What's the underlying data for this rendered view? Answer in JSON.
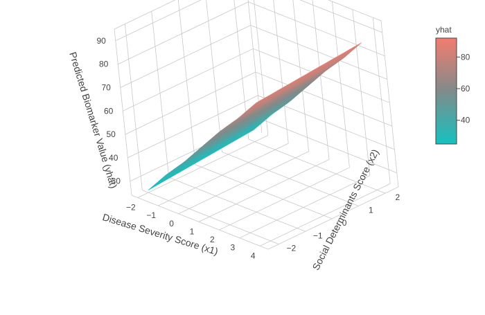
{
  "chart_data": {
    "type": "surface",
    "axes": {
      "x": {
        "title": "Disease Severity Score (x1)",
        "ticks": [
          -2,
          -1,
          0,
          1,
          2,
          3,
          4
        ],
        "range": [
          -2.3,
          4.4
        ]
      },
      "y": {
        "title": "Social Determinants Score (x2)",
        "ticks": [
          -2,
          -1,
          0,
          1,
          2
        ],
        "range": [
          -2.4,
          2.5
        ]
      },
      "z": {
        "title": "Predicted Biomarker Value (yhat)",
        "ticks": [
          30,
          40,
          50,
          60,
          70,
          80,
          90
        ],
        "range": [
          24,
          95
        ]
      }
    },
    "surface": {
      "x1": [
        -2,
        -1,
        0,
        1,
        2,
        3,
        4
      ],
      "x2": [
        -2,
        -1,
        0,
        1,
        2
      ],
      "yhat": [
        [
          25,
          26,
          27,
          28,
          29
        ],
        [
          35,
          36,
          37,
          38,
          39
        ],
        [
          44,
          45,
          46,
          47,
          48
        ],
        [
          54,
          55,
          56,
          57,
          58
        ],
        [
          64,
          65,
          66,
          67,
          68
        ],
        [
          73,
          74,
          75,
          76,
          77
        ],
        [
          83,
          84,
          85,
          86,
          87
        ]
      ]
    },
    "colorbar": {
      "title": "yhat",
      "ticks": [
        40,
        60,
        80
      ],
      "range": [
        25,
        92
      ],
      "color_low": "#16c1c1",
      "color_mid": "#808b8b",
      "color_high": "#f47c6f"
    },
    "grid": true
  }
}
